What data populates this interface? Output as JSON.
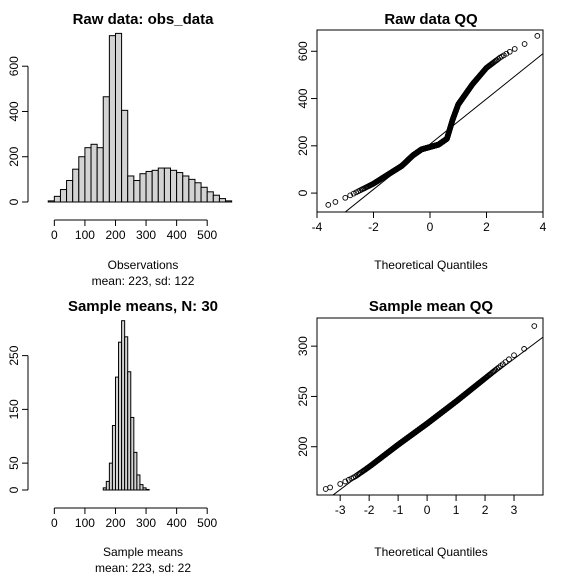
{
  "panels": {
    "hist_raw": {
      "title": "Raw data: obs_data",
      "xlabel": "Observations",
      "sublabel": "mean: 223, sd: 122"
    },
    "qq_raw": {
      "title": "Raw data QQ",
      "xlabel": "Theoretical Quantiles"
    },
    "hist_means": {
      "title": "Sample means, N: 30",
      "xlabel": "Sample means",
      "sublabel": "mean: 223, sd: 22"
    },
    "qq_means": {
      "title": "Sample mean QQ",
      "xlabel": "Theoretical Quantiles"
    }
  },
  "chart_data": [
    {
      "id": "hist_raw",
      "type": "bar",
      "title": "Raw data: obs_data",
      "xlabel": "Observations",
      "ylabel": "",
      "xlim": [
        -60,
        640
      ],
      "ylim": [
        0,
        760
      ],
      "xticks": [
        0,
        100,
        200,
        300,
        400,
        500
      ],
      "yticks": [
        0,
        200,
        400,
        600
      ],
      "binwidth": 20,
      "bins_start": [
        -20,
        0,
        20,
        40,
        60,
        80,
        100,
        120,
        140,
        160,
        180,
        200,
        220,
        240,
        260,
        280,
        300,
        320,
        340,
        360,
        380,
        400,
        420,
        440,
        460,
        480,
        500,
        520,
        540,
        560
      ],
      "values": [
        5,
        25,
        55,
        95,
        145,
        200,
        240,
        255,
        240,
        465,
        735,
        745,
        405,
        115,
        95,
        125,
        135,
        140,
        150,
        150,
        140,
        130,
        115,
        100,
        85,
        65,
        45,
        30,
        15,
        5
      ]
    },
    {
      "id": "qq_raw",
      "type": "scatter",
      "title": "Raw data QQ",
      "xlabel": "Theoretical Quantiles",
      "ylabel": "",
      "xlim": [
        -4,
        4
      ],
      "ylim": [
        -80,
        690
      ],
      "xticks": [
        -4,
        -2,
        0,
        2,
        4
      ],
      "yticks": [
        0,
        200,
        400,
        600
      ],
      "quantile_curve_x": [
        -3.6,
        -3.0,
        -2.0,
        -1.0,
        -0.6,
        -0.3,
        0.0,
        0.3,
        0.6,
        0.8,
        1.0,
        1.5,
        2.0,
        2.5,
        3.0,
        3.5,
        3.8
      ],
      "quantile_curve_y": [
        -50,
        -20,
        40,
        115,
        160,
        185,
        195,
        205,
        230,
        310,
        375,
        460,
        530,
        575,
        610,
        640,
        665
      ],
      "reference_line": {
        "x": [
          -3.0,
          4.0
        ],
        "y": [
          -80,
          590
        ]
      }
    },
    {
      "id": "hist_means",
      "type": "bar",
      "title": "Sample means, N: 30",
      "xlabel": "Sample means",
      "ylabel": "",
      "xlim": [
        -60,
        640
      ],
      "ylim": [
        0,
        320
      ],
      "xticks": [
        0,
        100,
        200,
        300,
        400,
        500
      ],
      "yticks": [
        0,
        50,
        150,
        250
      ],
      "binwidth": 10,
      "bins_start": [
        160,
        170,
        180,
        190,
        200,
        210,
        220,
        230,
        240,
        250,
        260,
        270,
        280,
        290,
        300
      ],
      "values": [
        4,
        16,
        50,
        120,
        210,
        275,
        315,
        285,
        220,
        135,
        70,
        28,
        10,
        4,
        1
      ]
    },
    {
      "id": "qq_means",
      "type": "scatter",
      "title": "Sample mean QQ",
      "xlabel": "Theoretical Quantiles",
      "ylabel": "",
      "xlim": [
        -3.8,
        4.0
      ],
      "ylim": [
        152,
        328
      ],
      "xticks": [
        -3,
        -2,
        -1,
        0,
        1,
        2,
        3
      ],
      "yticks": [
        200,
        250,
        300
      ],
      "quantile_curve_x": [
        -3.5,
        -3.0,
        -2.5,
        -2.0,
        -1.0,
        0.0,
        1.0,
        2.0,
        3.0,
        3.5,
        3.7
      ],
      "quantile_curve_y": [
        158,
        163,
        170,
        180,
        202,
        223,
        245,
        268,
        291,
        300,
        320
      ],
      "reference_line": {
        "x": [
          -3.8,
          4.0
        ],
        "y": [
          140,
          309
        ]
      }
    }
  ]
}
